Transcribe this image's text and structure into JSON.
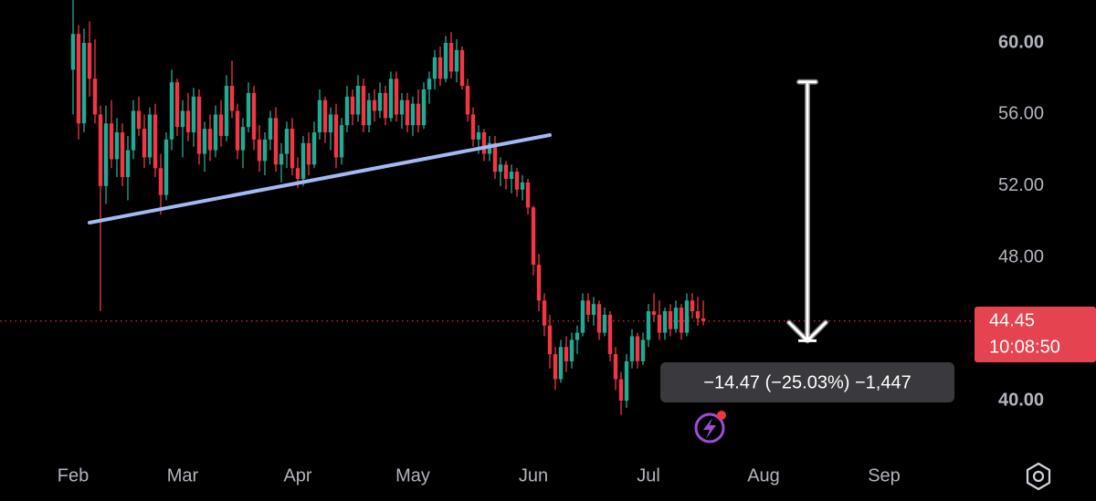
{
  "chart_data": {
    "type": "candlestick",
    "up_color": "#22ab94",
    "down_color": "#f23645",
    "categories": [
      "Feb",
      null,
      null,
      null,
      null,
      null,
      null,
      null,
      null,
      null,
      null,
      null,
      null,
      null,
      null,
      null,
      null,
      null,
      null,
      null,
      "Mar",
      null,
      null,
      null,
      null,
      null,
      null,
      null,
      null,
      null,
      null,
      null,
      null,
      null,
      null,
      null,
      null,
      null,
      null,
      null,
      null,
      "Apr",
      null,
      null,
      null,
      null,
      null,
      null,
      null,
      null,
      null,
      null,
      null,
      null,
      null,
      null,
      null,
      null,
      null,
      null,
      null,
      null,
      "May",
      null,
      null,
      null,
      null,
      null,
      null,
      null,
      null,
      null,
      null,
      null,
      null,
      null,
      null,
      null,
      null,
      null,
      null,
      null,
      null,
      null,
      "Jun",
      null,
      null,
      null,
      null,
      null,
      null,
      null,
      null,
      null,
      null,
      null,
      null,
      null,
      null,
      null,
      null,
      null,
      null,
      null,
      null,
      "Jul",
      null,
      null,
      null,
      null,
      null,
      null,
      null,
      null,
      null,
      null,
      null,
      null,
      null,
      null,
      null,
      null,
      null,
      null,
      null,
      null,
      "Aug",
      null,
      null,
      null,
      null,
      null,
      null,
      null,
      null,
      null,
      null,
      null,
      null,
      null,
      null,
      null,
      null,
      null,
      null,
      null,
      null,
      null,
      "Sep",
      null,
      null,
      null,
      null,
      null,
      null,
      null,
      null,
      null,
      null,
      null,
      null
    ],
    "values": [
      [
        58.5,
        62.4,
        56.0,
        60.5
      ],
      [
        60.5,
        61.0,
        54.6,
        55.5
      ],
      [
        55.5,
        60.8,
        55.0,
        60.0
      ],
      [
        60.0,
        61.2,
        57.0,
        58.0
      ],
      [
        58.0,
        60.2,
        55.5,
        56.0
      ],
      [
        56.0,
        56.5,
        45.0,
        52.0
      ],
      [
        52.0,
        56.5,
        51.0,
        55.5
      ],
      [
        55.5,
        56.8,
        53.0,
        53.5
      ],
      [
        53.5,
        55.8,
        52.5,
        55.0
      ],
      [
        55.0,
        55.5,
        52.0,
        52.5
      ],
      [
        52.5,
        54.8,
        51.2,
        54.0
      ],
      [
        54.0,
        56.8,
        53.5,
        56.2
      ],
      [
        56.2,
        57.0,
        54.8,
        55.2
      ],
      [
        55.2,
        56.0,
        53.0,
        53.6
      ],
      [
        53.6,
        56.4,
        53.2,
        56.0
      ],
      [
        56.0,
        56.6,
        52.5,
        53.0
      ],
      [
        53.0,
        53.8,
        50.4,
        51.5
      ],
      [
        51.5,
        55.0,
        51.2,
        54.6
      ],
      [
        54.6,
        58.5,
        54.0,
        57.8
      ],
      [
        57.8,
        58.0,
        54.8,
        55.3
      ],
      [
        55.3,
        56.8,
        53.6,
        56.2
      ],
      [
        56.2,
        57.2,
        54.5,
        55.0
      ],
      [
        55.0,
        57.5,
        54.2,
        57.0
      ],
      [
        57.0,
        57.4,
        53.2,
        53.8
      ],
      [
        53.8,
        55.6,
        52.8,
        55.2
      ],
      [
        55.2,
        56.0,
        53.4,
        54.0
      ],
      [
        54.0,
        56.5,
        53.6,
        56.0
      ],
      [
        56.0,
        56.8,
        54.2,
        54.8
      ],
      [
        54.8,
        58.2,
        54.5,
        57.6
      ],
      [
        57.6,
        59.0,
        55.8,
        56.2
      ],
      [
        56.2,
        56.6,
        53.5,
        54.0
      ],
      [
        54.0,
        55.8,
        53.0,
        55.3
      ],
      [
        55.3,
        57.8,
        55.0,
        57.2
      ],
      [
        57.2,
        57.6,
        54.0,
        54.6
      ],
      [
        54.6,
        55.4,
        52.8,
        53.4
      ],
      [
        53.4,
        55.0,
        52.6,
        54.6
      ],
      [
        54.6,
        56.2,
        54.0,
        55.8
      ],
      [
        55.8,
        56.4,
        52.8,
        53.2
      ],
      [
        53.2,
        54.4,
        52.2,
        53.8
      ],
      [
        53.8,
        55.6,
        53.0,
        55.2
      ],
      [
        55.2,
        55.8,
        52.6,
        53.0
      ],
      [
        53.0,
        53.6,
        51.9,
        52.4
      ],
      [
        52.4,
        54.8,
        52.0,
        54.4
      ],
      [
        54.4,
        55.0,
        52.6,
        53.2
      ],
      [
        53.2,
        55.6,
        53.0,
        55.0
      ],
      [
        55.0,
        57.4,
        54.6,
        56.8
      ],
      [
        56.8,
        57.0,
        54.4,
        55.0
      ],
      [
        55.0,
        56.4,
        54.0,
        56.0
      ],
      [
        56.0,
        56.6,
        53.0,
        53.6
      ],
      [
        53.6,
        55.8,
        53.2,
        55.4
      ],
      [
        55.4,
        57.6,
        55.0,
        57.0
      ],
      [
        57.0,
        57.4,
        55.4,
        56.0
      ],
      [
        56.0,
        58.2,
        55.6,
        57.6
      ],
      [
        57.6,
        58.0,
        55.0,
        55.4
      ],
      [
        55.4,
        57.2,
        55.0,
        56.8
      ],
      [
        56.8,
        57.4,
        55.6,
        56.2
      ],
      [
        56.2,
        57.8,
        55.8,
        57.2
      ],
      [
        57.2,
        57.6,
        55.4,
        55.8
      ],
      [
        55.8,
        58.4,
        55.6,
        58.0
      ],
      [
        58.0,
        58.4,
        55.6,
        56.0
      ],
      [
        56.0,
        57.2,
        55.2,
        56.8
      ],
      [
        56.8,
        57.2,
        55.0,
        55.4
      ],
      [
        55.4,
        57.0,
        54.8,
        56.6
      ],
      [
        56.6,
        57.4,
        55.0,
        55.4
      ],
      [
        55.4,
        57.8,
        55.2,
        57.4
      ],
      [
        57.4,
        58.4,
        56.6,
        58.0
      ],
      [
        58.0,
        59.6,
        57.4,
        59.2
      ],
      [
        59.2,
        59.8,
        57.6,
        58.0
      ],
      [
        58.0,
        60.4,
        57.8,
        60.0
      ],
      [
        60.0,
        60.6,
        58.0,
        58.4
      ],
      [
        58.4,
        60.2,
        57.8,
        59.6
      ],
      [
        59.6,
        59.8,
        57.4,
        57.6
      ],
      [
        57.6,
        58.0,
        55.6,
        56.0
      ],
      [
        56.0,
        56.4,
        54.2,
        54.6
      ],
      [
        54.6,
        55.4,
        53.8,
        55.0
      ],
      [
        55.0,
        55.2,
        53.4,
        53.8
      ],
      [
        53.8,
        54.8,
        53.4,
        54.4
      ],
      [
        54.4,
        54.8,
        52.4,
        52.8
      ],
      [
        52.8,
        53.6,
        52.0,
        53.2
      ],
      [
        53.2,
        53.4,
        51.8,
        52.4
      ],
      [
        52.4,
        53.2,
        51.6,
        52.8
      ],
      [
        52.8,
        53.0,
        51.4,
        51.8
      ],
      [
        51.8,
        52.6,
        51.2,
        52.2
      ],
      [
        52.2,
        52.4,
        50.4,
        50.8
      ],
      [
        50.8,
        50.9,
        47.0,
        47.6
      ],
      [
        47.6,
        48.2,
        45.0,
        45.6
      ],
      [
        45.6,
        46.0,
        43.6,
        44.2
      ],
      [
        44.2,
        44.8,
        41.8,
        42.6
      ],
      [
        42.6,
        43.0,
        40.6,
        41.2
      ],
      [
        41.2,
        43.4,
        41.0,
        43.0
      ],
      [
        43.0,
        43.6,
        41.6,
        42.2
      ],
      [
        42.2,
        43.8,
        41.8,
        43.4
      ],
      [
        43.4,
        44.2,
        42.6,
        43.8
      ],
      [
        43.8,
        46.0,
        43.6,
        45.6
      ],
      [
        45.6,
        46.0,
        44.4,
        44.8
      ],
      [
        44.8,
        45.8,
        44.2,
        45.4
      ],
      [
        45.4,
        45.6,
        43.4,
        43.8
      ],
      [
        43.8,
        45.2,
        43.6,
        44.8
      ],
      [
        44.8,
        45.0,
        42.2,
        42.6
      ],
      [
        42.6,
        43.0,
        40.6,
        41.2
      ],
      [
        41.2,
        41.6,
        39.2,
        40.0
      ],
      [
        40.0,
        42.6,
        39.6,
        42.2
      ],
      [
        42.2,
        44.0,
        41.8,
        43.6
      ],
      [
        43.6,
        43.8,
        41.8,
        42.2
      ],
      [
        42.2,
        43.8,
        42.0,
        43.4
      ],
      [
        43.4,
        45.4,
        43.0,
        45.0
      ],
      [
        45.0,
        46.0,
        44.4,
        44.8
      ],
      [
        44.8,
        45.6,
        43.4,
        43.8
      ],
      [
        43.8,
        45.2,
        43.4,
        45.0
      ],
      [
        45.0,
        45.4,
        43.6,
        44.0
      ],
      [
        44.0,
        45.6,
        43.8,
        45.2
      ],
      [
        45.2,
        45.4,
        43.4,
        43.8
      ],
      [
        43.8,
        46.0,
        43.6,
        45.6
      ],
      [
        45.6,
        46.0,
        44.6,
        45.0
      ],
      [
        45.0,
        45.8,
        44.2,
        44.6
      ],
      [
        44.6,
        45.6,
        44.2,
        44.45
      ],
      null,
      null,
      null,
      null,
      null,
      null,
      null,
      null,
      null,
      null,
      null,
      null,
      null,
      null,
      null,
      null,
      null,
      null,
      null,
      null,
      null,
      null,
      null,
      null,
      null,
      null,
      null,
      null,
      null,
      null,
      null,
      null,
      null,
      null,
      null,
      null,
      null,
      null,
      null,
      null,
      null,
      null,
      null,
      null,
      null
    ],
    "ylim": [
      37.4,
      62.4
    ],
    "yticks": [
      {
        "value": 40,
        "label": "40.00"
      },
      {
        "value": 48,
        "label": "48.00"
      },
      {
        "value": 52,
        "label": "52.00"
      },
      {
        "value": 56,
        "label": "56.00"
      },
      {
        "value": 60,
        "label": "60.00"
      }
    ],
    "last_price": 44.45,
    "countdown": "10:08:50",
    "trendline": {
      "x0": 3,
      "y0": 49.95,
      "x1": 87,
      "y1": 54.85,
      "color": "#a3b8f5"
    },
    "measure": {
      "x": 134,
      "from": 57.82,
      "to": 43.35,
      "label": "−14.47 (−25.03%) −1,447"
    }
  }
}
